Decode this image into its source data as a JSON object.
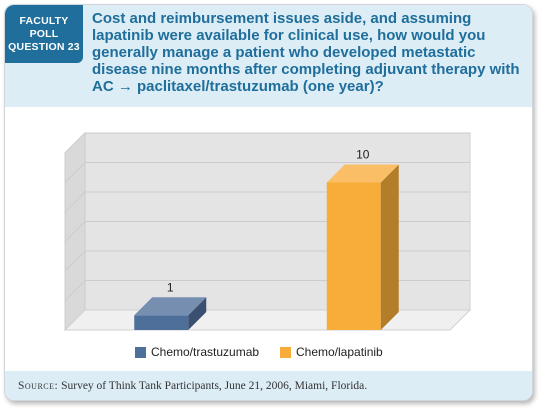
{
  "header": {
    "poll_tag": [
      "FACULTY",
      "POLL",
      "QUESTION 23"
    ],
    "question": "Cost and reimbursement issues aside, and assuming lapatinib were available for clinical use, how would you generally manage a patient who developed metastatic disease nine months after completing adjuvant therapy with AC → paclitaxel/trastuzumab (one year)?"
  },
  "chart_data": {
    "type": "bar",
    "categories": [
      "Chemo/trastuzumab",
      "Chemo/lapatinib"
    ],
    "values": [
      1,
      10
    ],
    "data_labels": [
      "1",
      "10"
    ],
    "ylim": [
      0,
      12
    ],
    "grid": true,
    "three_d": true,
    "legend_position": "bottom",
    "colors": [
      "#4f6f9b",
      "#f8ad3b"
    ]
  },
  "legend": {
    "items": [
      {
        "label": "Chemo/trastuzumab",
        "color": "#4f6f9b"
      },
      {
        "label": "Chemo/lapatinib",
        "color": "#f8ad3b"
      }
    ]
  },
  "footer": {
    "source_label": "Source:",
    "source_text": "Survey of Think Tank Participants, June 21, 2006, Miami, Florida."
  },
  "colors": {
    "accent": "#1f6e9b",
    "header_bg": "#dcedf5"
  }
}
